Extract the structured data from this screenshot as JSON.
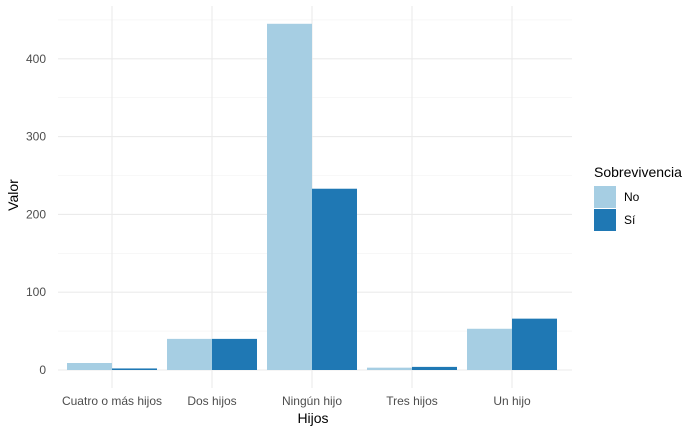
{
  "chart_data": {
    "type": "bar",
    "title": "",
    "xlabel": "Hijos",
    "ylabel": "Valor",
    "categories": [
      "Cuatro o más hijos",
      "Dos hijos",
      "Ningún hijo",
      "Tres hijos",
      "Un hijo"
    ],
    "series": [
      {
        "name": "No",
        "color": "#a6cee3",
        "values": [
          9,
          40,
          445,
          3,
          53
        ]
      },
      {
        "name": "Sí",
        "color": "#1f78b4",
        "values": [
          2,
          40,
          233,
          4,
          66
        ]
      }
    ],
    "ylim": [
      0,
      458
    ],
    "yticks": [
      0,
      100,
      200,
      300,
      400
    ],
    "grid": true,
    "legend": {
      "title": "Sobrevivencia",
      "placement": "right"
    }
  }
}
